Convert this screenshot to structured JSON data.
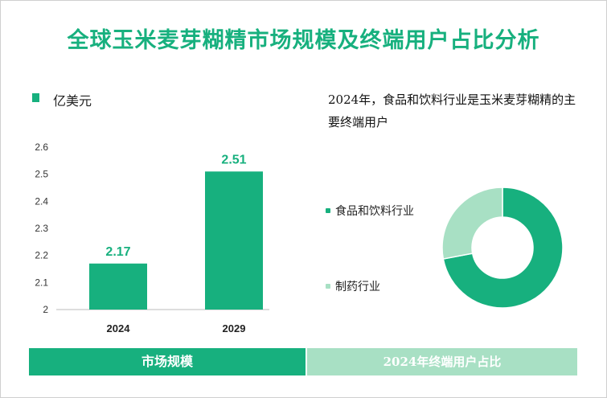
{
  "title": "全球玉米麦芽糊精市场规模及终端用户占比分析",
  "colors": {
    "primary": "#17b07e",
    "light": "#a8e0c4"
  },
  "chart_data": [
    {
      "type": "bar",
      "title": "市场规模",
      "legend": "亿美元",
      "categories": [
        "2024",
        "2029"
      ],
      "values": [
        2.17,
        2.51
      ],
      "value_labels": [
        "2.17",
        "2.51"
      ],
      "ylim": [
        2,
        2.6
      ],
      "yticks": [
        "2",
        "2.1",
        "2.2",
        "2.3",
        "2.4",
        "2.5",
        "2.6"
      ]
    },
    {
      "type": "pie",
      "title": "2024年终端用户占比",
      "note": "2024年，食品和饮料行业是玉米麦芽糊精的主要终端用户",
      "labels": [
        "食品和饮料行业",
        "制药行业"
      ],
      "values": [
        72,
        28
      ]
    }
  ],
  "footer": {
    "left": "市场规模",
    "right": "2024年终端用户占比"
  }
}
